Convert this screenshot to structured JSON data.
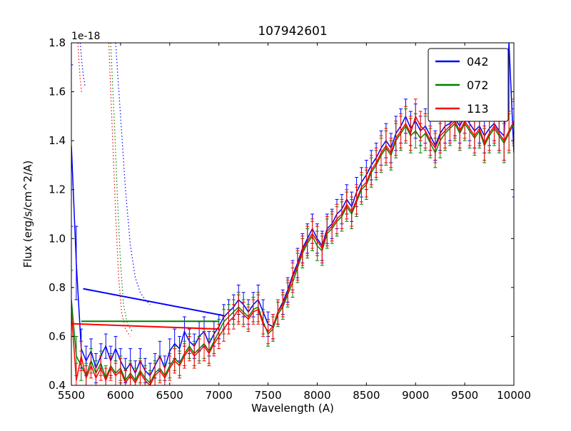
{
  "chart_data": {
    "type": "line",
    "title": "107942601",
    "xlabel": "Wavelength (A)",
    "ylabel": "Flux (erg/s/cm^2/A)",
    "offset_text": "1e-18",
    "xlim": [
      5500,
      10000
    ],
    "ylim": [
      0.4,
      1.8
    ],
    "xticks": [
      5500,
      6000,
      6500,
      7000,
      7500,
      8000,
      8500,
      9000,
      9500,
      10000
    ],
    "xtick_labels": [
      "5500",
      "6000",
      "6500",
      "7000",
      "7500",
      "8000",
      "8500",
      "9000",
      "9500",
      "10000"
    ],
    "yticks": [
      0.4,
      0.6,
      0.8,
      1.0,
      1.2,
      1.4,
      1.6,
      1.8
    ],
    "ytick_labels": [
      "0.4",
      "0.6",
      "0.8",
      "1.0",
      "1.2",
      "1.4",
      "1.6",
      "1.8"
    ],
    "grid": false,
    "legend_position": "upper-right",
    "colors": {
      "042": "#0000ff",
      "072": "#007f00",
      "113": "#ff0000"
    },
    "x_common": [
      5500,
      5550,
      5600,
      5650,
      5700,
      5750,
      5800,
      5850,
      5900,
      5950,
      6000,
      6050,
      6100,
      6150,
      6200,
      6250,
      6300,
      6350,
      6400,
      6450,
      6500,
      6550,
      6600,
      6650,
      6700,
      6750,
      6800,
      6850,
      6900,
      6950,
      7000,
      7050,
      7100,
      7150,
      7200,
      7250,
      7300,
      7350,
      7400,
      7450,
      7500,
      7550,
      7600,
      7650,
      7700,
      7750,
      7800,
      7850,
      7900,
      7950,
      8000,
      8050,
      8100,
      8150,
      8200,
      8250,
      8300,
      8350,
      8400,
      8450,
      8500,
      8550,
      8600,
      8650,
      8700,
      8750,
      8800,
      8850,
      8900,
      8950,
      9000,
      9050,
      9100,
      9150,
      9200,
      9250,
      9300,
      9350,
      9400,
      9450,
      9500,
      9550,
      9600,
      9650,
      9700,
      9750,
      9800,
      9850,
      9900,
      9950,
      10000
    ],
    "series": [
      {
        "name": "042",
        "color": "#0000ff",
        "style": "solid",
        "width": 1.5,
        "legend": true,
        "use_common_x": true,
        "y": [
          1.38,
          0.9,
          0.55,
          0.5,
          0.54,
          0.47,
          0.52,
          0.56,
          0.5,
          0.55,
          0.5,
          0.46,
          0.49,
          0.45,
          0.5,
          0.46,
          0.44,
          0.48,
          0.52,
          0.47,
          0.54,
          0.57,
          0.55,
          0.62,
          0.58,
          0.56,
          0.6,
          0.62,
          0.57,
          0.61,
          0.64,
          0.68,
          0.7,
          0.72,
          0.75,
          0.73,
          0.7,
          0.73,
          0.75,
          0.7,
          0.65,
          0.64,
          0.7,
          0.74,
          0.79,
          0.85,
          0.9,
          0.96,
          1.0,
          1.04,
          1.0,
          0.97,
          1.04,
          1.06,
          1.1,
          1.12,
          1.16,
          1.13,
          1.19,
          1.23,
          1.26,
          1.3,
          1.33,
          1.37,
          1.4,
          1.37,
          1.43,
          1.46,
          1.5,
          1.45,
          1.48,
          1.44,
          1.46,
          1.42,
          1.38,
          1.43,
          1.46,
          1.47,
          1.49,
          1.46,
          1.5,
          1.47,
          1.44,
          1.46,
          1.42,
          1.45,
          1.47,
          1.44,
          1.42,
          1.8,
          1.35
        ],
        "yerr": [
          0.33,
          0.15,
          0.08,
          0.06,
          0.05,
          0.06,
          0.05,
          0.05,
          0.06,
          0.05,
          0.05,
          0.05,
          0.06,
          0.05,
          0.05,
          0.05,
          0.05,
          0.05,
          0.06,
          0.05,
          0.05,
          0.06,
          0.05,
          0.06,
          0.05,
          0.05,
          0.06,
          0.06,
          0.05,
          0.05,
          0.05,
          0.05,
          0.05,
          0.05,
          0.06,
          0.05,
          0.05,
          0.05,
          0.06,
          0.05,
          0.05,
          0.05,
          0.05,
          0.05,
          0.05,
          0.06,
          0.06,
          0.06,
          0.06,
          0.06,
          0.06,
          0.06,
          0.06,
          0.06,
          0.06,
          0.06,
          0.06,
          0.06,
          0.06,
          0.06,
          0.06,
          0.06,
          0.06,
          0.07,
          0.07,
          0.06,
          0.07,
          0.07,
          0.07,
          0.07,
          0.07,
          0.06,
          0.07,
          0.06,
          0.06,
          0.07,
          0.07,
          0.07,
          0.07,
          0.07,
          0.07,
          0.07,
          0.07,
          0.07,
          0.07,
          0.07,
          0.07,
          0.08,
          0.1,
          0.28,
          0.18
        ]
      },
      {
        "name": "072",
        "color": "#007f00",
        "style": "solid",
        "width": 1.5,
        "legend": true,
        "use_common_x": true,
        "y": [
          0.75,
          0.52,
          0.48,
          0.44,
          0.5,
          0.45,
          0.49,
          0.43,
          0.48,
          0.45,
          0.47,
          0.42,
          0.45,
          0.42,
          0.46,
          0.43,
          0.41,
          0.45,
          0.47,
          0.44,
          0.48,
          0.51,
          0.49,
          0.53,
          0.56,
          0.53,
          0.55,
          0.57,
          0.54,
          0.58,
          0.62,
          0.66,
          0.68,
          0.7,
          0.72,
          0.7,
          0.68,
          0.71,
          0.72,
          0.66,
          0.61,
          0.63,
          0.69,
          0.72,
          0.77,
          0.82,
          0.88,
          0.94,
          0.98,
          1.01,
          0.97,
          0.95,
          1.02,
          1.04,
          1.07,
          1.09,
          1.13,
          1.1,
          1.15,
          1.2,
          1.22,
          1.27,
          1.3,
          1.34,
          1.37,
          1.34,
          1.4,
          1.43,
          1.46,
          1.42,
          1.44,
          1.41,
          1.43,
          1.39,
          1.35,
          1.4,
          1.43,
          1.45,
          1.47,
          1.43,
          1.47,
          1.44,
          1.41,
          1.44,
          1.38,
          1.42,
          1.45,
          1.42,
          1.39,
          1.43,
          1.47
        ],
        "yerr": [
          0.12,
          0.08,
          0.06,
          0.05,
          0.05,
          0.05,
          0.05,
          0.05,
          0.05,
          0.05,
          0.05,
          0.05,
          0.05,
          0.05,
          0.05,
          0.05,
          0.05,
          0.05,
          0.05,
          0.05,
          0.05,
          0.05,
          0.05,
          0.05,
          0.05,
          0.05,
          0.05,
          0.06,
          0.05,
          0.05,
          0.05,
          0.05,
          0.05,
          0.05,
          0.06,
          0.05,
          0.05,
          0.05,
          0.06,
          0.05,
          0.05,
          0.05,
          0.05,
          0.05,
          0.05,
          0.06,
          0.06,
          0.06,
          0.06,
          0.06,
          0.06,
          0.06,
          0.06,
          0.06,
          0.06,
          0.06,
          0.06,
          0.06,
          0.06,
          0.06,
          0.06,
          0.06,
          0.06,
          0.07,
          0.07,
          0.06,
          0.07,
          0.07,
          0.07,
          0.07,
          0.07,
          0.06,
          0.07,
          0.06,
          0.06,
          0.07,
          0.07,
          0.07,
          0.07,
          0.07,
          0.07,
          0.07,
          0.07,
          0.07,
          0.07,
          0.07,
          0.07,
          0.07,
          0.08,
          0.08,
          0.09
        ]
      },
      {
        "name": "113",
        "color": "#ff0000",
        "style": "solid",
        "width": 1.5,
        "legend": true,
        "use_common_x": true,
        "y": [
          0.7,
          0.42,
          0.52,
          0.43,
          0.48,
          0.43,
          0.47,
          0.42,
          0.47,
          0.44,
          0.46,
          0.41,
          0.44,
          0.41,
          0.45,
          0.42,
          0.4,
          0.44,
          0.46,
          0.43,
          0.47,
          0.5,
          0.48,
          0.52,
          0.55,
          0.52,
          0.54,
          0.56,
          0.53,
          0.57,
          0.6,
          0.63,
          0.66,
          0.68,
          0.71,
          0.69,
          0.67,
          0.7,
          0.71,
          0.65,
          0.62,
          0.64,
          0.7,
          0.73,
          0.78,
          0.84,
          0.89,
          0.95,
          0.99,
          1.02,
          0.99,
          0.96,
          1.03,
          1.05,
          1.08,
          1.1,
          1.14,
          1.11,
          1.16,
          1.21,
          1.23,
          1.28,
          1.31,
          1.35,
          1.38,
          1.35,
          1.41,
          1.44,
          1.47,
          1.43,
          1.5,
          1.46,
          1.44,
          1.4,
          1.37,
          1.42,
          1.44,
          1.46,
          1.48,
          1.44,
          1.48,
          1.45,
          1.42,
          1.45,
          1.39,
          1.43,
          1.46,
          1.43,
          1.4,
          1.44,
          1.48
        ],
        "yerr": [
          0.1,
          0.07,
          0.06,
          0.05,
          0.05,
          0.05,
          0.05,
          0.05,
          0.05,
          0.05,
          0.05,
          0.05,
          0.05,
          0.05,
          0.05,
          0.05,
          0.05,
          0.05,
          0.05,
          0.05,
          0.05,
          0.05,
          0.05,
          0.05,
          0.05,
          0.05,
          0.05,
          0.06,
          0.05,
          0.05,
          0.05,
          0.05,
          0.05,
          0.05,
          0.06,
          0.05,
          0.05,
          0.05,
          0.06,
          0.05,
          0.05,
          0.05,
          0.05,
          0.05,
          0.05,
          0.06,
          0.06,
          0.06,
          0.06,
          0.06,
          0.06,
          0.06,
          0.06,
          0.06,
          0.06,
          0.06,
          0.06,
          0.06,
          0.06,
          0.06,
          0.06,
          0.06,
          0.06,
          0.07,
          0.07,
          0.06,
          0.07,
          0.07,
          0.07,
          0.07,
          0.07,
          0.06,
          0.07,
          0.06,
          0.06,
          0.07,
          0.07,
          0.07,
          0.07,
          0.07,
          0.07,
          0.07,
          0.07,
          0.07,
          0.07,
          0.07,
          0.07,
          0.07,
          0.08,
          0.08,
          0.09
        ]
      },
      {
        "name": "042-interp",
        "color": "#0000ff",
        "style": "solid",
        "width": 2,
        "legend": false,
        "x": [
          5620,
          7050
        ],
        "y": [
          0.795,
          0.685
        ]
      },
      {
        "name": "072-interp",
        "color": "#007f00",
        "style": "solid",
        "width": 2,
        "legend": false,
        "x": [
          5600,
          7000
        ],
        "y": [
          0.662,
          0.662
        ]
      },
      {
        "name": "113-interp",
        "color": "#ff0000",
        "style": "solid",
        "width": 2,
        "legend": false,
        "x": [
          5500,
          7000
        ],
        "y": [
          0.652,
          0.63
        ]
      },
      {
        "name": "042-dotted",
        "color": "#0000ff",
        "style": "dotted",
        "width": 1.2,
        "legend": false,
        "x": [
          5950,
          6000,
          6050,
          6100,
          6150,
          6200,
          6250,
          6300
        ],
        "y": [
          1.8,
          1.5,
          1.2,
          0.97,
          0.84,
          0.78,
          0.75,
          0.73
        ]
      },
      {
        "name": "113-dotted",
        "color": "#ff0000",
        "style": "dotted",
        "width": 1.2,
        "legend": false,
        "x": [
          5880,
          5920,
          5950,
          5980,
          6010,
          6050,
          6100
        ],
        "y": [
          1.8,
          1.4,
          1.1,
          0.85,
          0.7,
          0.63,
          0.6
        ]
      },
      {
        "name": "072-dotted",
        "color": "#007f00",
        "style": "dotted",
        "width": 1.2,
        "legend": false,
        "x": [
          5900,
          5940,
          5970,
          6000,
          6030,
          6070,
          6120
        ],
        "y": [
          1.8,
          1.45,
          1.15,
          0.9,
          0.73,
          0.65,
          0.62
        ]
      },
      {
        "name": "042-dotted-left",
        "color": "#0000ff",
        "style": "dotted",
        "width": 1.2,
        "legend": false,
        "x": [
          5590,
          5605,
          5620,
          5640
        ],
        "y": [
          1.8,
          1.73,
          1.67,
          1.62
        ]
      },
      {
        "name": "113-dotted-left",
        "color": "#ff0000",
        "style": "dotted",
        "width": 1.2,
        "legend": false,
        "x": [
          5565,
          5578,
          5590,
          5605
        ],
        "y": [
          1.8,
          1.72,
          1.65,
          1.59
        ]
      }
    ],
    "legend_entries": [
      "042",
      "072",
      "113"
    ]
  }
}
